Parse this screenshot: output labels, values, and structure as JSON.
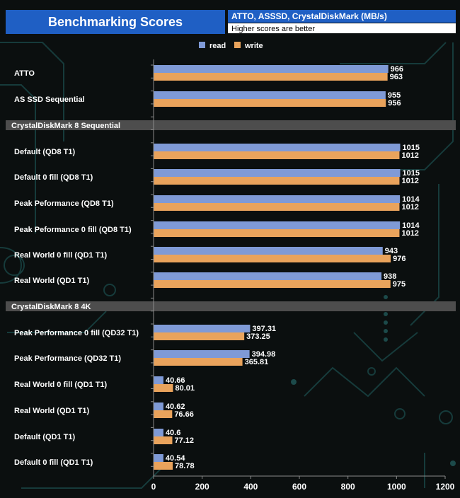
{
  "chart_data": {
    "type": "bar",
    "orientation": "horizontal",
    "title": "Benchmarking Scores",
    "subtitle": "ATTO, ASSSD, CrystalDiskMark (MB/s)",
    "note": "Higher scores are better",
    "xlim": [
      0,
      1200
    ],
    "xticks": [
      0,
      200,
      400,
      600,
      800,
      1000,
      1200
    ],
    "legend": {
      "position": "top",
      "entries": [
        "read",
        "write"
      ]
    },
    "colors": {
      "read": "#7f9ad6",
      "write": "#e9a35c",
      "title_bg": "#1f5fc4",
      "section_bg": "#4d4d4d"
    },
    "rows": [
      {
        "kind": "category",
        "label": "ATTO",
        "read": 966,
        "write": 963,
        "read_label": "966",
        "write_label": "963"
      },
      {
        "kind": "category",
        "label": "AS SSD Sequential",
        "read": 955,
        "write": 956,
        "read_label": "955",
        "write_label": "956"
      },
      {
        "kind": "section",
        "label": "CrystalDiskMark 8 Sequential"
      },
      {
        "kind": "category",
        "label": "Default (QD8 T1)",
        "read": 1015,
        "write": 1012,
        "read_label": "1015",
        "write_label": "1012"
      },
      {
        "kind": "category",
        "label": "Default 0 fill (QD8 T1)",
        "read": 1015,
        "write": 1012,
        "read_label": "1015",
        "write_label": "1012"
      },
      {
        "kind": "category",
        "label": "Peak Peformance (QD8 T1)",
        "read": 1014,
        "write": 1012,
        "read_label": "1014",
        "write_label": "1012"
      },
      {
        "kind": "category",
        "label": "Peak Peformance 0 fill (QD8 T1)",
        "read": 1014,
        "write": 1012,
        "read_label": "1014",
        "write_label": "1012"
      },
      {
        "kind": "category",
        "label": "Real World 0 fill (QD1 T1)",
        "read": 943,
        "write": 976,
        "read_label": "943",
        "write_label": "976"
      },
      {
        "kind": "category",
        "label": "Real World (QD1 T1)",
        "read": 938,
        "write": 975,
        "read_label": "938",
        "write_label": "975"
      },
      {
        "kind": "section",
        "label": "CrystalDiskMark 8 4K"
      },
      {
        "kind": "category",
        "label": "Peak Performance 0 fill (QD32 T1)",
        "read": 397.31,
        "write": 373.25,
        "read_label": "397.31",
        "write_label": "373.25"
      },
      {
        "kind": "category",
        "label": "Peak Performance (QD32 T1)",
        "read": 394.98,
        "write": 365.81,
        "read_label": "394.98",
        "write_label": "365.81"
      },
      {
        "kind": "category",
        "label": "Real World 0 fill  (QD1 T1)",
        "read": 40.66,
        "write": 80.01,
        "read_label": "40.66",
        "write_label": "80.01"
      },
      {
        "kind": "category",
        "label": "Real World  (QD1 T1)",
        "read": 40.62,
        "write": 76.66,
        "read_label": "40.62",
        "write_label": "76.66"
      },
      {
        "kind": "category",
        "label": "Default (QD1 T1)",
        "read": 40.6,
        "write": 77.12,
        "read_label": "40.6",
        "write_label": "77.12"
      },
      {
        "kind": "category",
        "label": "Default 0 fill (QD1 T1)",
        "read": 40.54,
        "write": 78.78,
        "read_label": "40.54",
        "write_label": "78.78"
      }
    ]
  }
}
